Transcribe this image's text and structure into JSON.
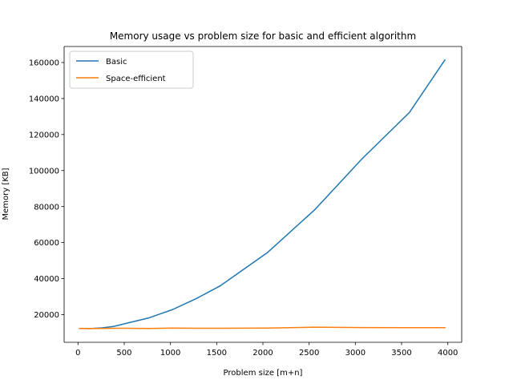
{
  "chart_data": {
    "type": "line",
    "title": "Memory usage vs problem size for basic and efficient algorithm",
    "xlabel": "Problem size [m+n]",
    "ylabel": "Memory [KB]",
    "xlim": [
      -150,
      4150
    ],
    "ylim": [
      4600,
      168900
    ],
    "xticks": [
      0,
      500,
      1000,
      1500,
      2000,
      2500,
      3000,
      3500,
      4000
    ],
    "yticks": [
      20000,
      40000,
      60000,
      80000,
      100000,
      120000,
      140000,
      160000
    ],
    "xtick_labels": [
      "0",
      "500",
      "1000",
      "1500",
      "2000",
      "2500",
      "3000",
      "3500",
      "4000"
    ],
    "ytick_labels": [
      "20000",
      "40000",
      "60000",
      "80000",
      "100000",
      "120000",
      "140000",
      "160000"
    ],
    "grid": false,
    "legend_position": "upper-left",
    "series": [
      {
        "name": "Basic",
        "color": "#1f77b4",
        "x": [
          16,
          128,
          256,
          384,
          512,
          768,
          1024,
          1280,
          1536,
          2048,
          2560,
          3072,
          3584,
          3968
        ],
        "y": [
          12300,
          12200,
          12600,
          13400,
          15000,
          18200,
          22800,
          28900,
          35900,
          54400,
          78200,
          106500,
          132200,
          161400
        ]
      },
      {
        "name": "Space-efficient",
        "color": "#ff7f0e",
        "x": [
          16,
          128,
          256,
          384,
          512,
          768,
          1024,
          1280,
          1536,
          2048,
          2560,
          3072,
          3584,
          3968
        ],
        "y": [
          12300,
          12200,
          12300,
          12400,
          12400,
          12300,
          12500,
          12400,
          12400,
          12500,
          13000,
          12800,
          12700,
          12700
        ]
      }
    ]
  }
}
